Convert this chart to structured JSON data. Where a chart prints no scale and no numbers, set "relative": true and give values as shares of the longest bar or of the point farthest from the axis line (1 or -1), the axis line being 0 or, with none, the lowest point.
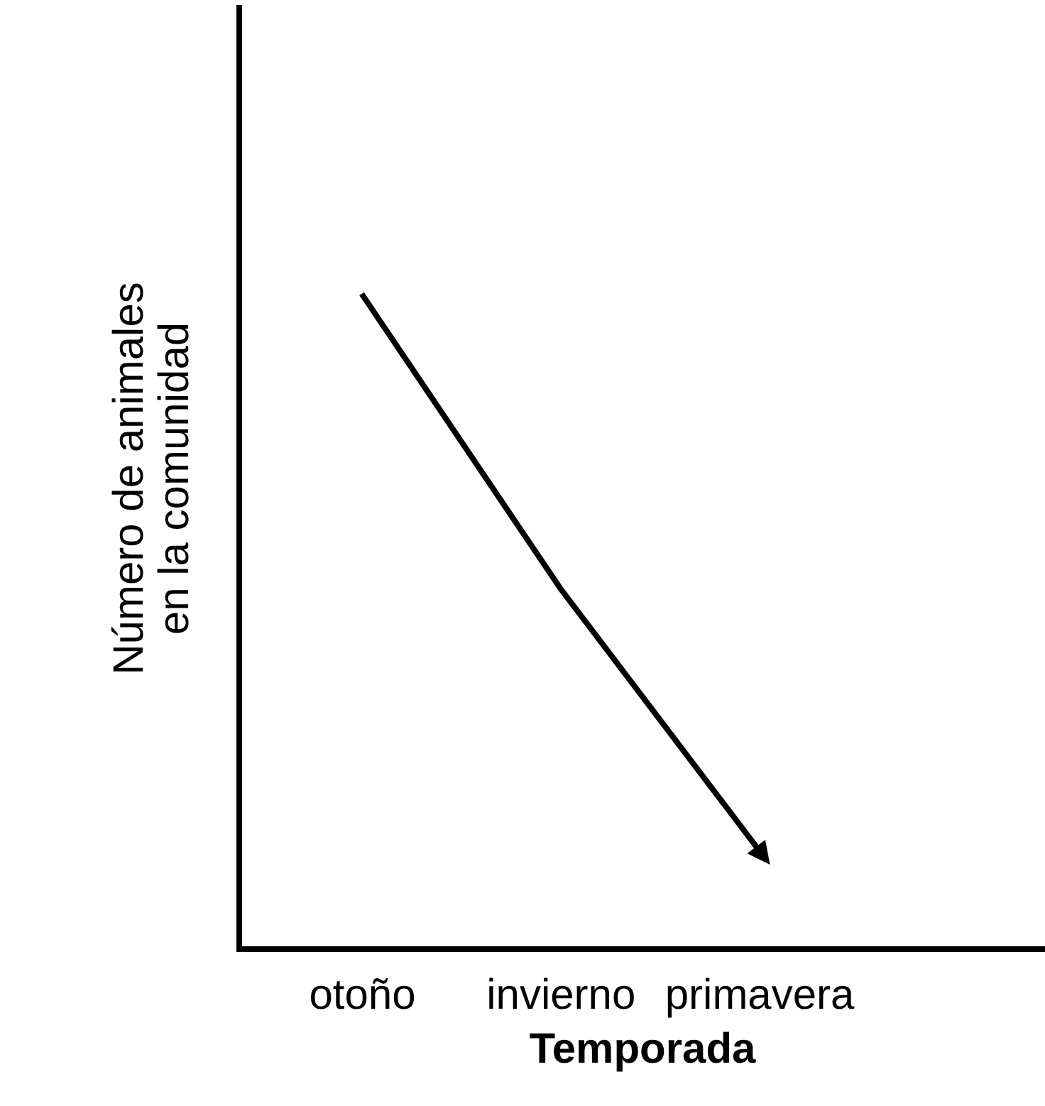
{
  "chart_data": {
    "type": "line",
    "relative": true,
    "xlabel": "Temporada",
    "ylabel": "Número de animales\nen la comunidad",
    "categories": [
      "otoño",
      "invierno",
      "primavera"
    ],
    "series": [
      {
        "color": "#000000",
        "values": [
          1,
          0.55,
          0.15
        ]
      }
    ],
    "marker": "none",
    "line_style": "solid",
    "grid": false
  }
}
